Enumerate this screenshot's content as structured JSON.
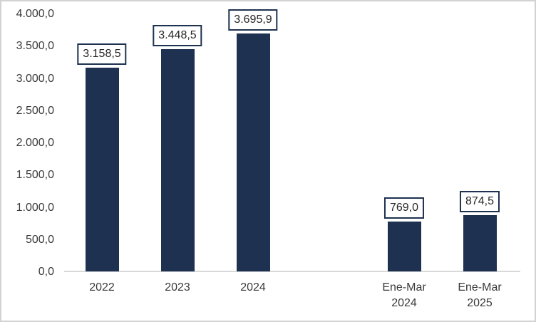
{
  "chart_data": {
    "type": "bar",
    "title": "",
    "categories": [
      "2022",
      "2023",
      "2024",
      "",
      "Ene-Mar 2024",
      "Ene-Mar 2025"
    ],
    "category_lines": [
      [
        "2022"
      ],
      [
        "2023"
      ],
      [
        "2024"
      ],
      [],
      [
        "Ene-Mar",
        "2024"
      ],
      [
        "Ene-Mar",
        "2025"
      ]
    ],
    "values": [
      3158.5,
      3448.5,
      3695.9,
      null,
      769.0,
      874.5
    ],
    "value_labels": [
      "3.158,5",
      "3.448,5",
      "3.695,9",
      "",
      "769,0",
      "874,5"
    ],
    "ylim": [
      0,
      4000
    ],
    "ytick_values": [
      0,
      500,
      1000,
      1500,
      2000,
      2500,
      3000,
      3500,
      4000
    ],
    "ytick_labels": [
      "0,0",
      "500,0",
      "1.000,0",
      "1.500,0",
      "2.000,0",
      "2.500,0",
      "3.000,0",
      "3.500,0",
      "4.000,0"
    ],
    "grid": false,
    "legend": null,
    "number_format": "es-ES",
    "colors": {
      "bar": "#1E3150",
      "label_box_border": "#1E3150",
      "label_box_fill": "#FFFFFF",
      "axis_line": "#D9D9D9",
      "text": "#3A3A3A",
      "frame_border": "#D2D2D2"
    }
  }
}
